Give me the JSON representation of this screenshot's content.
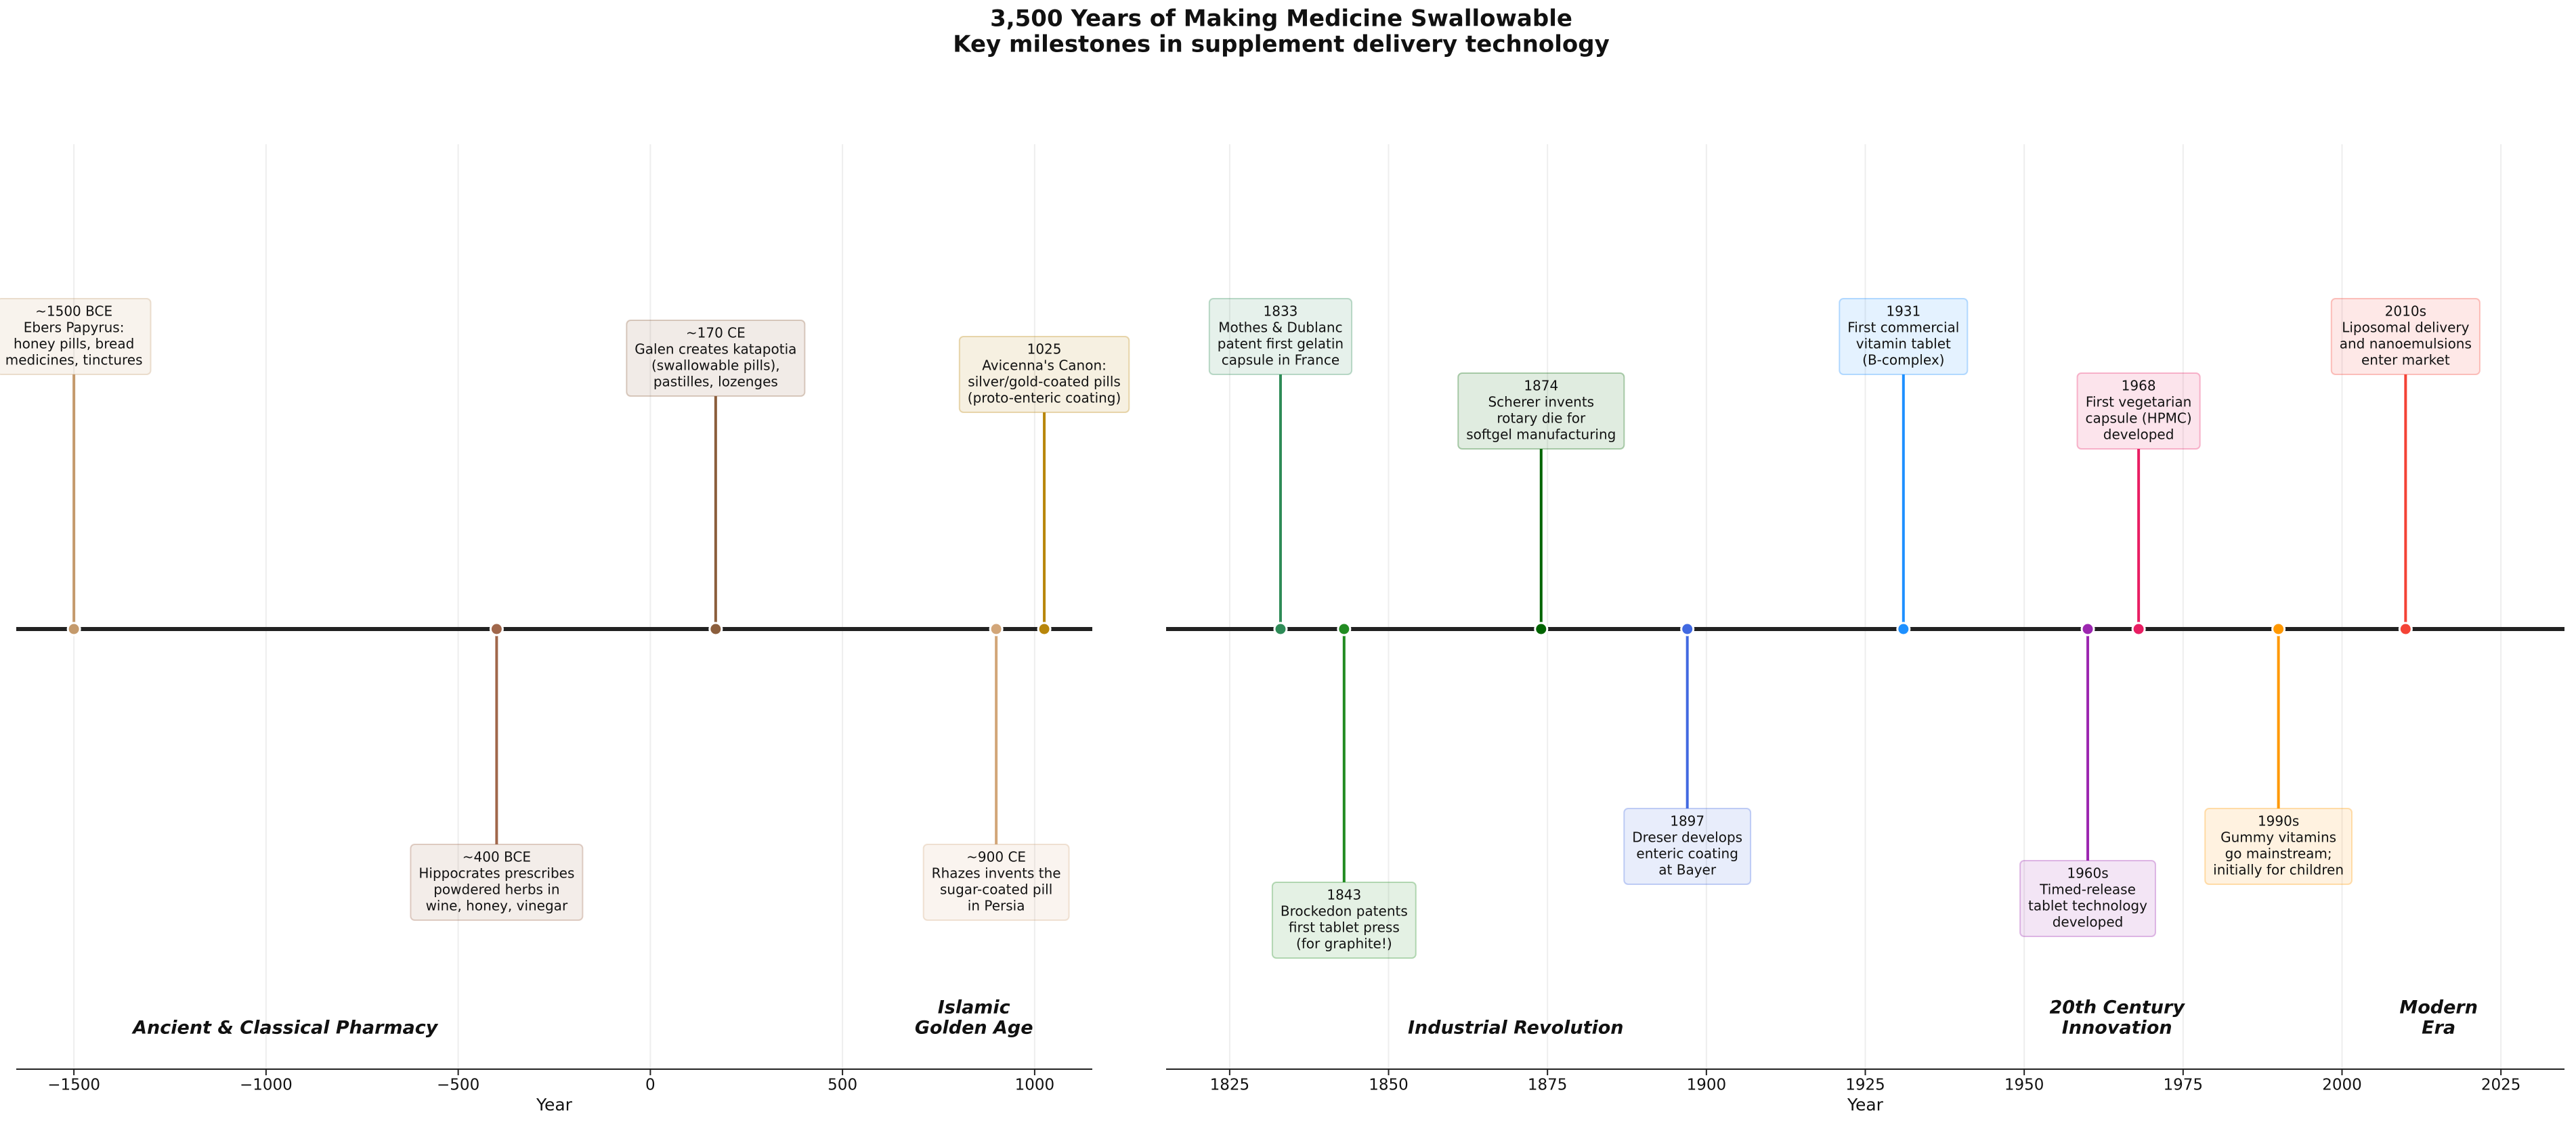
{
  "title": "3,500 Years of Making Medicine Swallowable",
  "subtitle": "Key milestones in supplement delivery technology",
  "chart_data": [
    {
      "type": "timeline",
      "xlabel": "Year",
      "xlim": [
        -1650,
        1150
      ],
      "xticks": [
        {
          "value": -1500,
          "label": "−1500"
        },
        {
          "value": -1000,
          "label": "−1000"
        },
        {
          "value": -500,
          "label": "−500"
        },
        0,
        500,
        1000
      ],
      "grid": true,
      "events": [
        {
          "x": -1500,
          "date": "~1500 BCE",
          "text": [
            "Ebers Papyrus:",
            "honey pills, bread",
            "medicines, tinctures"
          ],
          "color": "#c49a6c"
        },
        {
          "x": -400,
          "date": "~400 BCE",
          "text": [
            "Hippocrates prescribes",
            "powdered herbs in",
            "wine, honey, vinegar"
          ],
          "color": "#a0674b"
        },
        {
          "x": 170,
          "date": "~170 CE",
          "text": [
            "Galen creates katapotia",
            "(swallowable pills),",
            "pastilles, lozenges"
          ],
          "color": "#8b5e3c"
        },
        {
          "x": 900,
          "date": "~900 CE",
          "text": [
            "Rhazes invents the",
            "sugar-coated pill",
            "in Persia"
          ],
          "color": "#d2a679"
        },
        {
          "x": 1025,
          "date": "1025",
          "text": [
            "Avicenna's Canon:",
            "silver/gold-coated pills",
            "(proto-enteric coating)"
          ],
          "color": "#b8860b"
        }
      ],
      "eras": [
        {
          "name": [
            "Ancient & Classical Pharmacy"
          ],
          "color": "#8b5a3c"
        },
        {
          "name": [
            "Islamic",
            "Golden Age"
          ],
          "color": "#b8860b"
        }
      ]
    },
    {
      "type": "timeline",
      "xlabel": "Year",
      "xlim": [
        1815,
        2035
      ],
      "xticks": [
        1825,
        1850,
        1875,
        1900,
        1925,
        1950,
        1975,
        2000,
        2025
      ],
      "grid": true,
      "events": [
        {
          "x": 1833,
          "date": "1833",
          "text": [
            "Mothes & Dublanc",
            "patent first gelatin",
            "capsule in France"
          ],
          "color": "#2e8b57"
        },
        {
          "x": 1843,
          "date": "1843",
          "text": [
            "Brockedon patents",
            "first tablet press",
            "(for graphite!)"
          ],
          "color": "#228b22"
        },
        {
          "x": 1874,
          "date": "1874",
          "text": [
            "Scherer invents",
            "rotary die for",
            "softgel manufacturing"
          ],
          "color": "#006400"
        },
        {
          "x": 1897,
          "date": "1897",
          "text": [
            "Dreser develops",
            "enteric coating",
            "at Bayer"
          ],
          "color": "#4169e1"
        },
        {
          "x": 1931,
          "date": "1931",
          "text": [
            "First commercial",
            "vitamin tablet",
            "(B-complex)"
          ],
          "color": "#1e90ff"
        },
        {
          "x": 1960,
          "date": "1960s",
          "text": [
            "Timed-release",
            "tablet technology",
            "developed"
          ],
          "color": "#9c27b0"
        },
        {
          "x": 1968,
          "date": "1968",
          "text": [
            "First vegetarian",
            "capsule (HPMC)",
            "developed"
          ],
          "color": "#e91e63"
        },
        {
          "x": 1990,
          "date": "1990s",
          "text": [
            "Gummy vitamins",
            "go mainstream;",
            "initially for children"
          ],
          "color": "#ff9800"
        },
        {
          "x": 2010,
          "date": "2010s",
          "text": [
            "Liposomal delivery",
            "and nanoemulsions",
            "enter market"
          ],
          "color": "#f44336"
        }
      ],
      "eras": [
        {
          "name": [
            "Industrial Revolution"
          ],
          "color": "#228b22"
        },
        {
          "name": [
            "20th Century",
            "Innovation"
          ],
          "color": "#9c27b0"
        },
        {
          "name": [
            "Modern",
            "Era"
          ],
          "color": "#e53935"
        }
      ]
    }
  ]
}
